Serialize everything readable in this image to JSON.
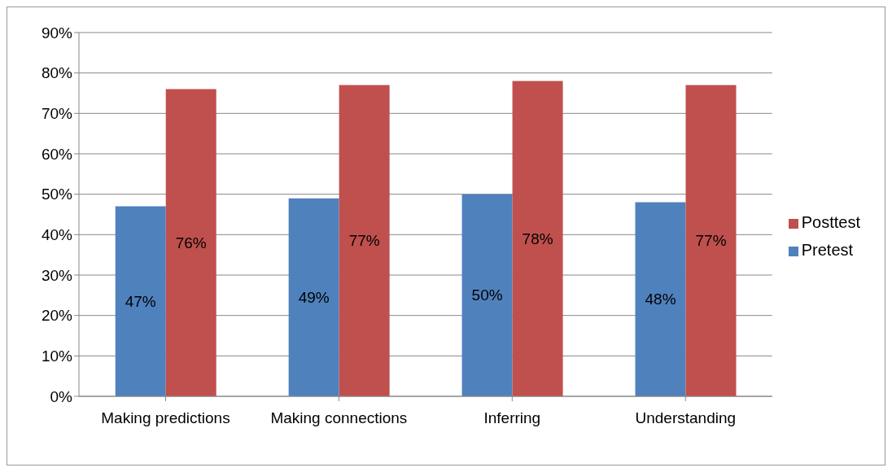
{
  "chart_data": {
    "type": "bar",
    "categories": [
      "Making predictions",
      "Making connections",
      "Inferring",
      "Understanding"
    ],
    "series": [
      {
        "name": "Pretest",
        "color": "#4f81bd",
        "values": [
          47,
          49,
          50,
          48
        ],
        "value_labels": [
          "47%",
          "49%",
          "50%",
          "48%"
        ]
      },
      {
        "name": "Posttest",
        "color": "#c0504d",
        "values": [
          76,
          77,
          78,
          77
        ],
        "value_labels": [
          "76%",
          "77%",
          "78%",
          "77%"
        ]
      }
    ],
    "ylim": [
      0,
      90
    ],
    "yticks": [
      {
        "value": 0,
        "label": "0%"
      },
      {
        "value": 10,
        "label": "10%"
      },
      {
        "value": 20,
        "label": "20%"
      },
      {
        "value": 30,
        "label": "30%"
      },
      {
        "value": 40,
        "label": "40%"
      },
      {
        "value": 50,
        "label": "50%"
      },
      {
        "value": 60,
        "label": "60%"
      },
      {
        "value": 70,
        "label": "70%"
      },
      {
        "value": 80,
        "label": "80%"
      },
      {
        "value": 90,
        "label": "90%"
      }
    ],
    "grid": "y",
    "legend": "right"
  }
}
